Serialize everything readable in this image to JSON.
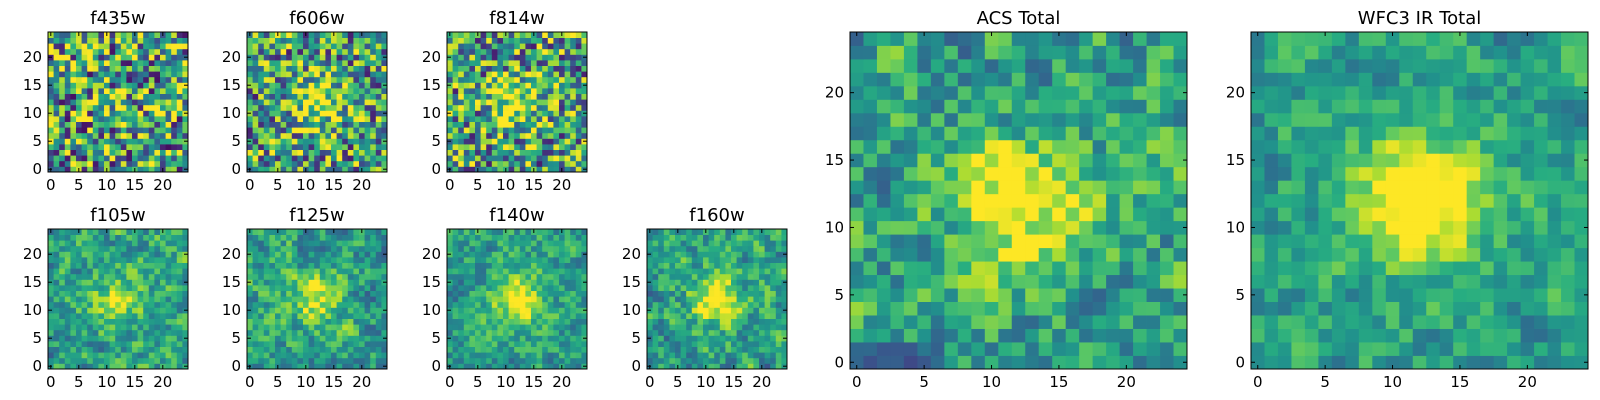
{
  "figure": {
    "description_title": ""
  },
  "chart_data": [
    {
      "type": "heatmap",
      "title": "f435w",
      "xlim": [
        0,
        25
      ],
      "ylim": [
        0,
        25
      ],
      "grid_size": 25,
      "xticks": [
        0,
        5,
        10,
        15,
        20
      ],
      "yticks": [
        0,
        5,
        10,
        15,
        20
      ],
      "xtick_labels": [
        "0",
        "5",
        "10",
        "15",
        "20"
      ],
      "ytick_labels": [
        "0",
        "5",
        "10",
        "15",
        "20"
      ],
      "colormap": "viridis",
      "center_brightness": 0.1,
      "noise_level": 0.95,
      "seed": 11
    },
    {
      "type": "heatmap",
      "title": "f606w",
      "xlim": [
        0,
        25
      ],
      "ylim": [
        0,
        25
      ],
      "grid_size": 25,
      "xticks": [
        0,
        5,
        10,
        15,
        20
      ],
      "yticks": [
        0,
        5,
        10,
        15,
        20
      ],
      "xtick_labels": [
        "0",
        "5",
        "10",
        "15",
        "20"
      ],
      "ytick_labels": [
        "0",
        "5",
        "10",
        "15",
        "20"
      ],
      "colormap": "viridis",
      "center_brightness": 0.45,
      "noise_level": 0.85,
      "seed": 23
    },
    {
      "type": "heatmap",
      "title": "f814w",
      "xlim": [
        0,
        25
      ],
      "ylim": [
        0,
        25
      ],
      "grid_size": 25,
      "xticks": [
        0,
        5,
        10,
        15,
        20
      ],
      "yticks": [
        0,
        5,
        10,
        15,
        20
      ],
      "xtick_labels": [
        "0",
        "5",
        "10",
        "15",
        "20"
      ],
      "ytick_labels": [
        "0",
        "5",
        "10",
        "15",
        "20"
      ],
      "colormap": "viridis",
      "center_brightness": 0.4,
      "noise_level": 0.85,
      "seed": 37
    },
    {
      "type": "heatmap",
      "title": "f105w",
      "xlim": [
        0,
        25
      ],
      "ylim": [
        0,
        25
      ],
      "grid_size": 25,
      "xticks": [
        0,
        5,
        10,
        15,
        20
      ],
      "yticks": [
        0,
        5,
        10,
        15,
        20
      ],
      "xtick_labels": [
        "0",
        "5",
        "10",
        "15",
        "20"
      ],
      "ytick_labels": [
        "0",
        "5",
        "10",
        "15",
        "20"
      ],
      "colormap": "viridis",
      "center_brightness": 0.35,
      "noise_level": 0.7,
      "seed": 41
    },
    {
      "type": "heatmap",
      "title": "f125w",
      "xlim": [
        0,
        25
      ],
      "ylim": [
        0,
        25
      ],
      "grid_size": 25,
      "xticks": [
        0,
        5,
        10,
        15,
        20
      ],
      "yticks": [
        0,
        5,
        10,
        15,
        20
      ],
      "xtick_labels": [
        "0",
        "5",
        "10",
        "15",
        "20"
      ],
      "ytick_labels": [
        "0",
        "5",
        "10",
        "15",
        "20"
      ],
      "colormap": "viridis",
      "center_brightness": 0.35,
      "noise_level": 0.7,
      "seed": 53
    },
    {
      "type": "heatmap",
      "title": "f140w",
      "xlim": [
        0,
        25
      ],
      "ylim": [
        0,
        25
      ],
      "grid_size": 25,
      "xticks": [
        0,
        5,
        10,
        15,
        20
      ],
      "yticks": [
        0,
        5,
        10,
        15,
        20
      ],
      "xtick_labels": [
        "0",
        "5",
        "10",
        "15",
        "20"
      ],
      "ytick_labels": [
        "0",
        "5",
        "10",
        "15",
        "20"
      ],
      "colormap": "viridis",
      "center_brightness": 0.45,
      "noise_level": 0.6,
      "seed": 67
    },
    {
      "type": "heatmap",
      "title": "f160w",
      "xlim": [
        0,
        25
      ],
      "ylim": [
        0,
        25
      ],
      "grid_size": 25,
      "xticks": [
        0,
        5,
        10,
        15,
        20
      ],
      "yticks": [
        0,
        5,
        10,
        15,
        20
      ],
      "xtick_labels": [
        "0",
        "5",
        "10",
        "15",
        "20"
      ],
      "ytick_labels": [
        "0",
        "5",
        "10",
        "15",
        "20"
      ],
      "colormap": "viridis",
      "center_brightness": 0.5,
      "noise_level": 0.7,
      "seed": 79
    },
    {
      "type": "heatmap",
      "title": "ACS Total",
      "xlim": [
        0,
        25
      ],
      "ylim": [
        0,
        25
      ],
      "grid_size": 25,
      "xticks": [
        0,
        5,
        10,
        15,
        20
      ],
      "yticks": [
        0,
        5,
        10,
        15,
        20
      ],
      "xtick_labels": [
        "0",
        "5",
        "10",
        "15",
        "20"
      ],
      "ytick_labels": [
        "0",
        "5",
        "10",
        "15",
        "20"
      ],
      "colormap": "viridis",
      "center_brightness": 0.5,
      "noise_level": 0.75,
      "seed": 97
    },
    {
      "type": "heatmap",
      "title": "WFC3 IR Total",
      "xlim": [
        0,
        25
      ],
      "ylim": [
        0,
        25
      ],
      "grid_size": 25,
      "xticks": [
        0,
        5,
        10,
        15,
        20
      ],
      "yticks": [
        0,
        5,
        10,
        15,
        20
      ],
      "xtick_labels": [
        "0",
        "5",
        "10",
        "15",
        "20"
      ],
      "ytick_labels": [
        "0",
        "5",
        "10",
        "15",
        "20"
      ],
      "colormap": "viridis",
      "center_brightness": 0.65,
      "noise_level": 0.55,
      "seed": 113
    }
  ]
}
